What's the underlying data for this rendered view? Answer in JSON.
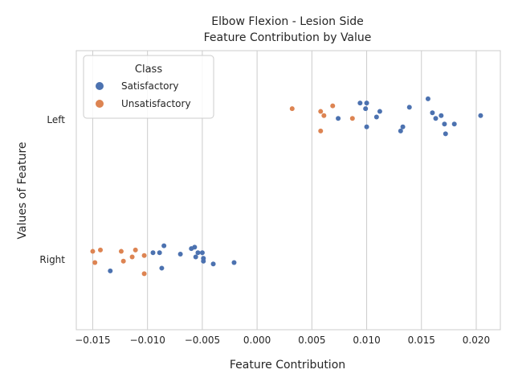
{
  "chart_data": {
    "type": "scatter",
    "title": "Elbow Flexion - Lesion Side",
    "subtitle": "Feature Contribution by Value",
    "xlabel": "Feature Contribution",
    "ylabel": "Values of Feature",
    "categories": [
      "Left",
      "Right"
    ],
    "xlim": [
      -0.0165,
      0.0222
    ],
    "xticks": [
      -0.015,
      -0.01,
      -0.005,
      0.0,
      0.005,
      0.01,
      0.015,
      0.02
    ],
    "xtick_labels": [
      "−0.015",
      "−0.010",
      "−0.005",
      "0.000",
      "0.005",
      "0.010",
      "0.015",
      "0.020"
    ],
    "grid": true,
    "legend": {
      "title": "Class",
      "position": "top-left",
      "entries": [
        {
          "name": "Satisfactory",
          "color": "#4c72b0"
        },
        {
          "name": "Unsatisfactory",
          "color": "#dd8452"
        }
      ]
    },
    "series": [
      {
        "name": "Satisfactory",
        "color": "#4c72b0",
        "points": [
          {
            "x": 0.0094,
            "category": "Left",
            "jitter": -0.12
          },
          {
            "x": 0.01,
            "category": "Left",
            "jitter": -0.12
          },
          {
            "x": 0.0099,
            "category": "Left",
            "jitter": -0.08
          },
          {
            "x": 0.0112,
            "category": "Left",
            "jitter": -0.06
          },
          {
            "x": 0.0109,
            "category": "Left",
            "jitter": -0.02
          },
          {
            "x": 0.0074,
            "category": "Left",
            "jitter": -0.01
          },
          {
            "x": 0.01,
            "category": "Left",
            "jitter": 0.05
          },
          {
            "x": 0.0139,
            "category": "Left",
            "jitter": -0.09
          },
          {
            "x": 0.0156,
            "category": "Left",
            "jitter": -0.15
          },
          {
            "x": 0.016,
            "category": "Left",
            "jitter": -0.05
          },
          {
            "x": 0.0163,
            "category": "Left",
            "jitter": -0.01
          },
          {
            "x": 0.0168,
            "category": "Left",
            "jitter": -0.03
          },
          {
            "x": 0.0171,
            "category": "Left",
            "jitter": 0.03
          },
          {
            "x": 0.018,
            "category": "Left",
            "jitter": 0.03
          },
          {
            "x": 0.0133,
            "category": "Left",
            "jitter": 0.05
          },
          {
            "x": 0.0131,
            "category": "Left",
            "jitter": 0.08
          },
          {
            "x": 0.0172,
            "category": "Left",
            "jitter": 0.1
          },
          {
            "x": 0.0204,
            "category": "Left",
            "jitter": -0.03
          },
          {
            "x": -0.0085,
            "category": "Right",
            "jitter": -0.1
          },
          {
            "x": -0.0095,
            "category": "Right",
            "jitter": -0.05
          },
          {
            "x": -0.0089,
            "category": "Right",
            "jitter": -0.05
          },
          {
            "x": -0.007,
            "category": "Right",
            "jitter": -0.04
          },
          {
            "x": -0.006,
            "category": "Right",
            "jitter": -0.08
          },
          {
            "x": -0.0057,
            "category": "Right",
            "jitter": -0.09
          },
          {
            "x": -0.0054,
            "category": "Right",
            "jitter": -0.05
          },
          {
            "x": -0.005,
            "category": "Right",
            "jitter": -0.05
          },
          {
            "x": -0.0056,
            "category": "Right",
            "jitter": -0.02
          },
          {
            "x": -0.0049,
            "category": "Right",
            "jitter": -0.01
          },
          {
            "x": -0.0049,
            "category": "Right",
            "jitter": 0.01
          },
          {
            "x": -0.004,
            "category": "Right",
            "jitter": 0.03
          },
          {
            "x": -0.0021,
            "category": "Right",
            "jitter": 0.02
          },
          {
            "x": -0.0134,
            "category": "Right",
            "jitter": 0.08
          },
          {
            "x": -0.0087,
            "category": "Right",
            "jitter": 0.06
          }
        ]
      },
      {
        "name": "Unsatisfactory",
        "color": "#dd8452",
        "points": [
          {
            "x": 0.0032,
            "category": "Left",
            "jitter": -0.08
          },
          {
            "x": 0.0058,
            "category": "Left",
            "jitter": -0.06
          },
          {
            "x": 0.0061,
            "category": "Left",
            "jitter": -0.03
          },
          {
            "x": 0.0069,
            "category": "Left",
            "jitter": -0.1
          },
          {
            "x": 0.0087,
            "category": "Left",
            "jitter": -0.01
          },
          {
            "x": 0.0058,
            "category": "Left",
            "jitter": 0.08
          },
          {
            "x": -0.015,
            "category": "Right",
            "jitter": -0.06
          },
          {
            "x": -0.0143,
            "category": "Right",
            "jitter": -0.07
          },
          {
            "x": -0.0124,
            "category": "Right",
            "jitter": -0.06
          },
          {
            "x": -0.0111,
            "category": "Right",
            "jitter": -0.07
          },
          {
            "x": -0.0114,
            "category": "Right",
            "jitter": -0.02
          },
          {
            "x": -0.0103,
            "category": "Right",
            "jitter": -0.03
          },
          {
            "x": -0.0122,
            "category": "Right",
            "jitter": 0.01
          },
          {
            "x": -0.0148,
            "category": "Right",
            "jitter": 0.02
          },
          {
            "x": -0.0103,
            "category": "Right",
            "jitter": 0.1
          }
        ]
      }
    ]
  }
}
